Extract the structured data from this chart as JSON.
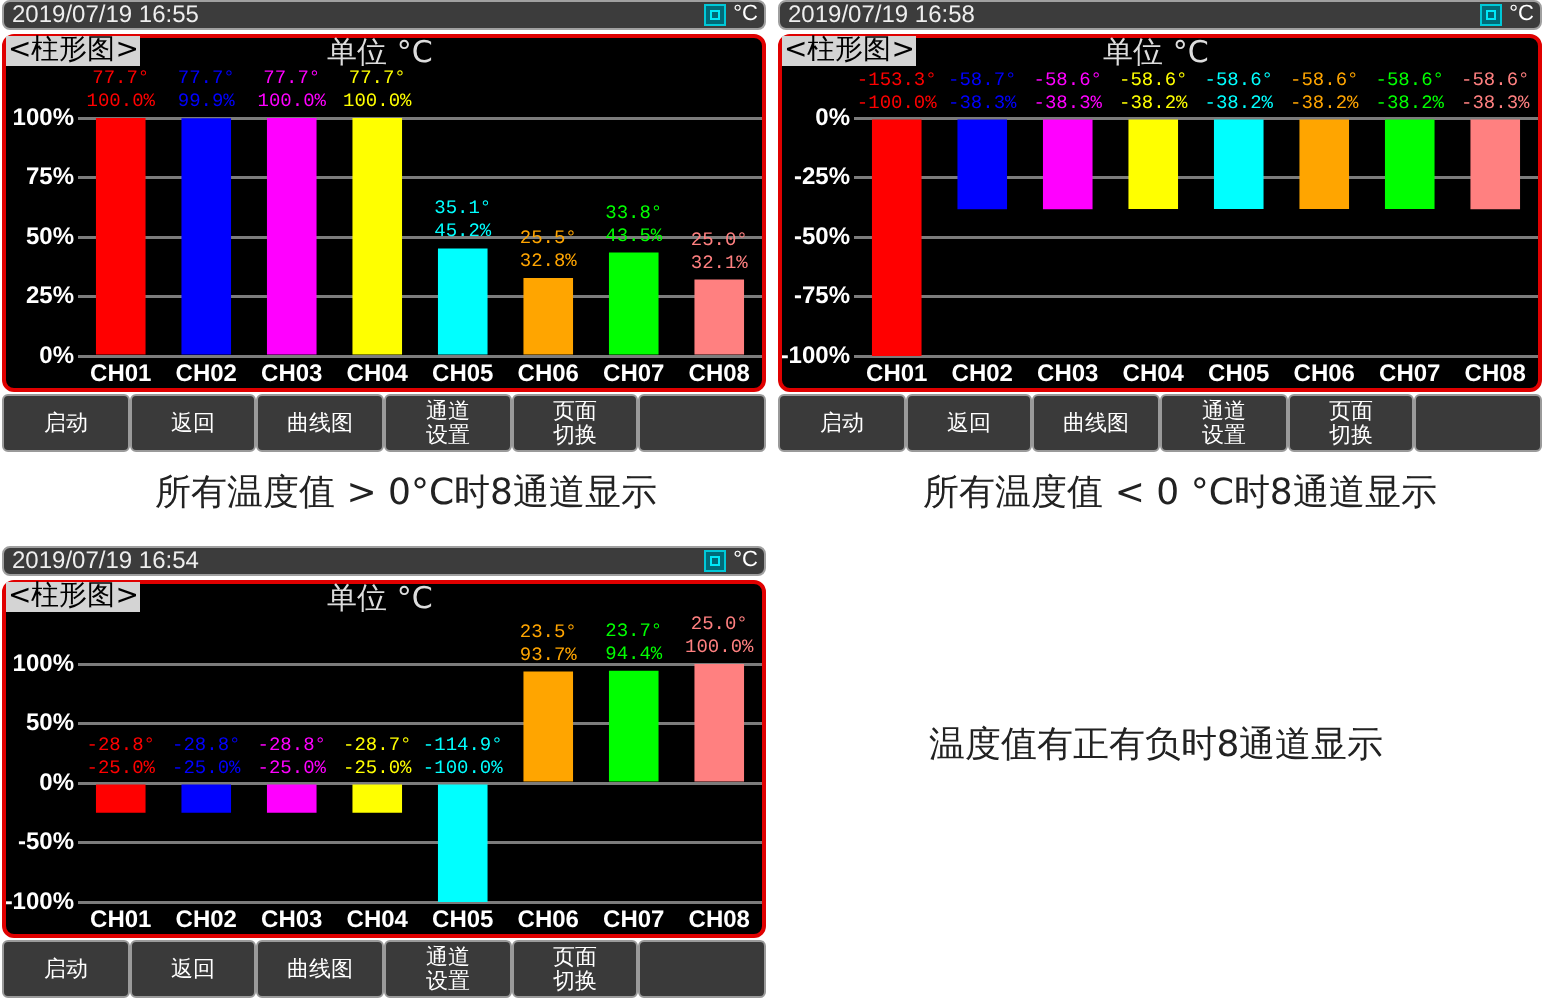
{
  "chart_data": [
    {
      "type": "bar",
      "title": "<柱形图>",
      "subtitle": "单位 °C",
      "categories": [
        "CH01",
        "CH02",
        "CH03",
        "CH04",
        "CH05",
        "CH06",
        "CH07",
        "CH08"
      ],
      "values": [
        100.0,
        99.9,
        100.0,
        100.0,
        45.2,
        32.8,
        43.5,
        32.1
      ],
      "colors": [
        "#ff0000",
        "#0000ff",
        "#ff00ff",
        "#ffff00",
        "#00ffff",
        "#ffa500",
        "#00ff00",
        "#ff8080"
      ],
      "value_labels": [
        "77.7°\n100.0%",
        "77.7°\n99.9%",
        "77.7°\n100.0%",
        "77.7°\n100.0%",
        "35.1°\n45.2%",
        "25.5°\n32.8%",
        "33.8°\n43.5%",
        "25.0°\n32.1%"
      ],
      "ylim": [
        0,
        100
      ],
      "yticks": [
        {
          "value": 0,
          "label": "0%"
        },
        {
          "value": 25,
          "label": "25%"
        },
        {
          "value": 50,
          "label": "50%"
        },
        {
          "value": 75,
          "label": "75%"
        },
        {
          "value": 100,
          "label": "100%"
        }
      ],
      "grid": "y",
      "annotations": [
        "2019/07/19 16:55",
        "°C",
        "启动",
        "返回",
        "曲线图",
        "通道设置",
        "页面切换",
        "所有温度值 > 0°C时8通道显示"
      ]
    },
    {
      "type": "bar",
      "title": "<柱形图>",
      "subtitle": "单位 °C",
      "categories": [
        "CH01",
        "CH02",
        "CH03",
        "CH04",
        "CH05",
        "CH06",
        "CH07",
        "CH08"
      ],
      "values": [
        -100.0,
        -38.3,
        -38.3,
        -38.2,
        -38.2,
        -38.2,
        -38.2,
        -38.3
      ],
      "colors": [
        "#ff0000",
        "#0000ff",
        "#ff00ff",
        "#ffff00",
        "#00ffff",
        "#ffa500",
        "#00ff00",
        "#ff8080"
      ],
      "value_labels": [
        "-153.3°\n-100.0%",
        "-58.7°\n-38.3%",
        "-58.6°\n-38.3%",
        "-58.6°\n-38.2%",
        "-58.6°\n-38.2%",
        "-58.6°\n-38.2%",
        "-58.6°\n-38.2%",
        "-58.6°\n-38.3%"
      ],
      "ylim": [
        -100,
        0
      ],
      "yticks": [
        {
          "value": -100,
          "label": "-100%"
        },
        {
          "value": -75,
          "label": "-75%"
        },
        {
          "value": -50,
          "label": "-50%"
        },
        {
          "value": -25,
          "label": "-25%"
        },
        {
          "value": 0,
          "label": "0%"
        }
      ],
      "grid": "y",
      "annotations": [
        "2019/07/19 16:58",
        "°C",
        "启动",
        "返回",
        "曲线图",
        "通道设置",
        "页面切换",
        "所有温度值 < 0 °C时8通道显示"
      ]
    },
    {
      "type": "bar",
      "title": "<柱形图>",
      "subtitle": "单位 °C",
      "categories": [
        "CH01",
        "CH02",
        "CH03",
        "CH04",
        "CH05",
        "CH06",
        "CH07",
        "CH08"
      ],
      "values": [
        -25.0,
        -25.0,
        -25.0,
        -25.0,
        -100.0,
        93.7,
        94.4,
        100.0
      ],
      "colors": [
        "#ff0000",
        "#0000ff",
        "#ff00ff",
        "#ffff00",
        "#00ffff",
        "#ffa500",
        "#00ff00",
        "#ff8080"
      ],
      "value_labels": [
        "-28.8°\n-25.0%",
        "-28.8°\n-25.0%",
        "-28.8°\n-25.0%",
        "-28.7°\n-25.0%",
        "-114.9°\n-100.0%",
        "23.5°\n93.7%",
        "23.7°\n94.4%",
        "25.0°\n100.0%"
      ],
      "ylim": [
        -100,
        100
      ],
      "yticks": [
        {
          "value": -100,
          "label": "-100%"
        },
        {
          "value": -50,
          "label": "-50%"
        },
        {
          "value": 0,
          "label": "0%"
        },
        {
          "value": 50,
          "label": "50%"
        },
        {
          "value": 100,
          "label": "100%"
        }
      ],
      "grid": "y",
      "annotations": [
        "2019/07/19 16:54",
        "°C",
        "启动",
        "返回",
        "曲线图",
        "通道设置",
        "页面切换",
        "温度值有正有负时8通道显示"
      ]
    }
  ]
}
